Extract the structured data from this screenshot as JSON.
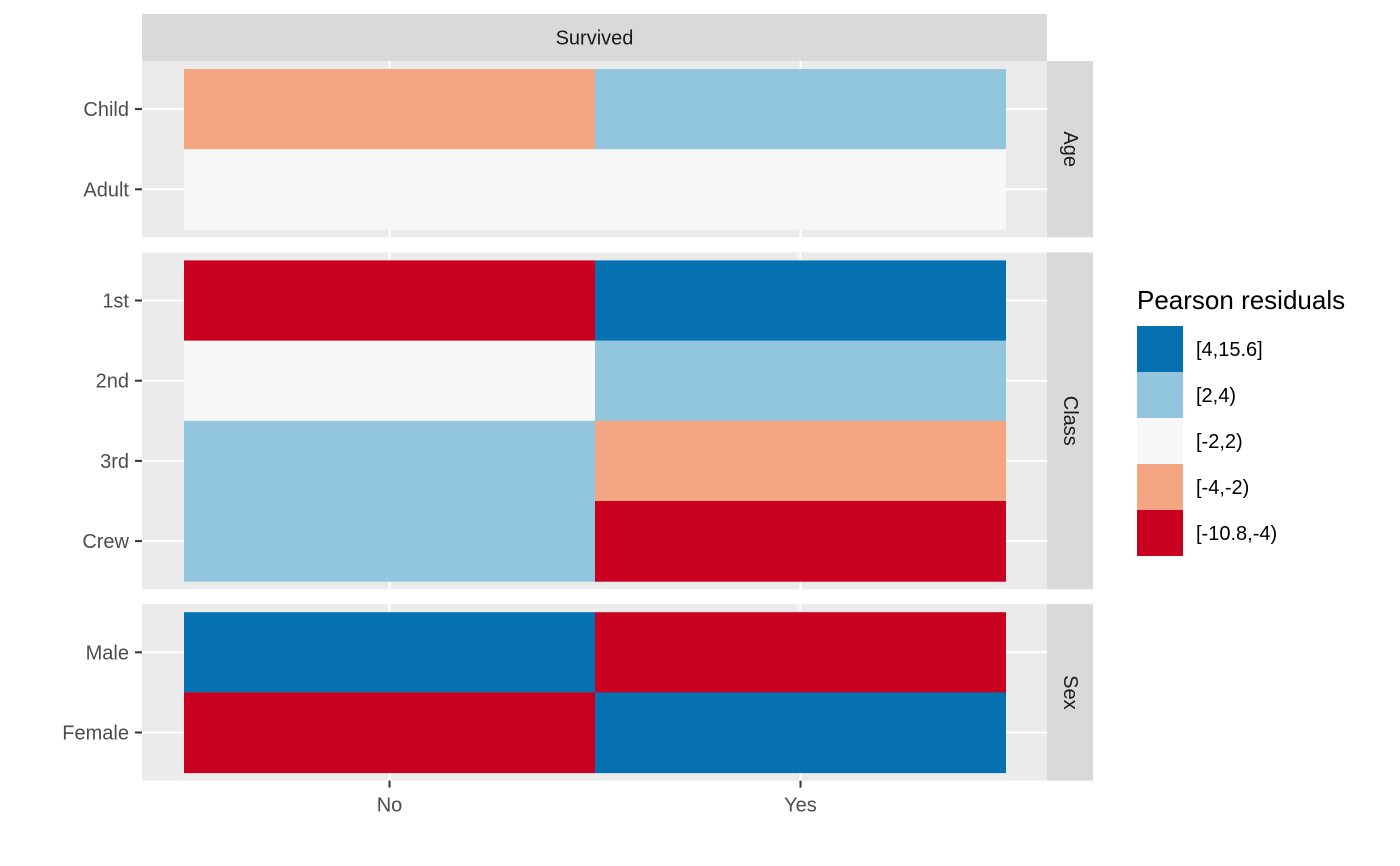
{
  "chart_data": {
    "type": "heatmap",
    "x_categories": [
      "No",
      "Yes"
    ],
    "column_strip": "Survived",
    "panels": [
      {
        "name": "Age",
        "rows": [
          "Child",
          "Adult"
        ],
        "bins": [
          [
            "[-4,-2)",
            "[2,4)"
          ],
          [
            "[-2,2)",
            "[-2,2)"
          ]
        ]
      },
      {
        "name": "Class",
        "rows": [
          "1st",
          "2nd",
          "3rd",
          "Crew"
        ],
        "bins": [
          [
            "[-10.8,-4)",
            "[4,15.6]"
          ],
          [
            "[-2,2)",
            "[2,4)"
          ],
          [
            "[2,4)",
            "[-4,-2)"
          ],
          [
            "[2,4)",
            "[-10.8,-4)"
          ]
        ]
      },
      {
        "name": "Sex",
        "rows": [
          "Male",
          "Female"
        ],
        "bins": [
          [
            "[4,15.6]",
            "[-10.8,-4)"
          ],
          [
            "[-10.8,-4)",
            "[4,15.6]"
          ]
        ]
      }
    ],
    "legend": {
      "title": "Pearson residuals",
      "position": "right",
      "entries": [
        {
          "label": "[4,15.6]",
          "color": "#0571b0"
        },
        {
          "label": "[2,4)",
          "color": "#92c5de"
        },
        {
          "label": "[-2,2)",
          "color": "#f7f7f7"
        },
        {
          "label": "[-4,-2)",
          "color": "#f4a582"
        },
        {
          "label": "[-10.8,-4)",
          "color": "#ca0020"
        }
      ]
    },
    "grid": true,
    "panel_background": "#ebebeb",
    "strip_background": "#d9d9d9"
  }
}
